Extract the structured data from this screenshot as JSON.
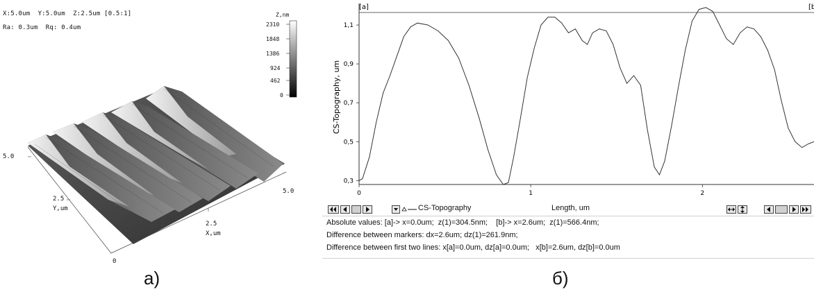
{
  "left": {
    "meta_line1": "X:5.0um  Y:5.0um  Z:2.5um [0.5:1]",
    "meta_line2": "Ra: 0.3um  Rq: 0.4um",
    "colorbar": {
      "title": "Z,nm",
      "ticks": [
        "2310",
        "1848",
        "1386",
        "924",
        "462",
        "0"
      ]
    },
    "y_axis": {
      "label": "Y,um",
      "ticks": [
        "5.0",
        "2.5"
      ]
    },
    "x_axis": {
      "label": "X,um",
      "ticks": [
        "5.0",
        "2.5"
      ]
    },
    "origin_label": "0",
    "caption": "a)"
  },
  "right": {
    "caption": "б)",
    "marker_a": "[a]",
    "marker_b": "[b]",
    "series_name": "CS-Topography",
    "length_label": "Length, um",
    "info_lines": [
      "Absolute values: [a]-> x=0.0um;  z(1)=304.5nm;    [b]-> x=2.6um;  z(1)=566.4nm;",
      "Difference between markers: dx=2.6um; dz(1)=261.9nm;",
      "Difference between first two lines: x[a]=0.0um, dz[a]=0.0um;   x[b]=2.6um, dz[b]=0.0um"
    ]
  },
  "chart_data": {
    "type": "line",
    "title": "",
    "xlabel": "",
    "ylabel": "CS-Topography, um",
    "xlim": [
      0,
      2.65
    ],
    "ylim": [
      0.28,
      1.2
    ],
    "xticks": [
      "0",
      "1",
      "2"
    ],
    "xtick_values": [
      0,
      1,
      2
    ],
    "yticks": [
      "0,3",
      "0,5",
      "0,7",
      "0,9",
      "1,1"
    ],
    "ytick_values": [
      0.3,
      0.5,
      0.7,
      0.9,
      1.1
    ],
    "grid": false,
    "series": [
      {
        "x": [
          0.0,
          0.02,
          0.06,
          0.1,
          0.14,
          0.18,
          0.22,
          0.26,
          0.3,
          0.34,
          0.4,
          0.46,
          0.52,
          0.58,
          0.64,
          0.7,
          0.75,
          0.8,
          0.84,
          0.87,
          0.9,
          0.94,
          0.98,
          1.02,
          1.06,
          1.1,
          1.14,
          1.18,
          1.22,
          1.26,
          1.3,
          1.33,
          1.36,
          1.4,
          1.44,
          1.48,
          1.52,
          1.56,
          1.6,
          1.64,
          1.68,
          1.72,
          1.75,
          1.78,
          1.82,
          1.86,
          1.9,
          1.94,
          1.98,
          2.02,
          2.06,
          2.1,
          2.14,
          2.18,
          2.22,
          2.26,
          2.3,
          2.34,
          2.38,
          2.42,
          2.46,
          2.5,
          2.54,
          2.58,
          2.62,
          2.65
        ],
        "y": [
          0.3,
          0.31,
          0.42,
          0.6,
          0.75,
          0.84,
          0.94,
          1.04,
          1.09,
          1.11,
          1.1,
          1.07,
          1.02,
          0.93,
          0.79,
          0.62,
          0.46,
          0.33,
          0.28,
          0.29,
          0.42,
          0.62,
          0.83,
          0.98,
          1.1,
          1.14,
          1.14,
          1.11,
          1.06,
          1.08,
          1.02,
          1.0,
          1.06,
          1.08,
          1.07,
          1.0,
          0.88,
          0.8,
          0.84,
          0.79,
          0.56,
          0.37,
          0.33,
          0.4,
          0.58,
          0.78,
          0.97,
          1.12,
          1.18,
          1.19,
          1.17,
          1.1,
          1.03,
          1.0,
          1.06,
          1.09,
          1.08,
          1.04,
          0.97,
          0.87,
          0.71,
          0.57,
          0.5,
          0.47,
          0.49,
          0.5
        ]
      }
    ]
  }
}
